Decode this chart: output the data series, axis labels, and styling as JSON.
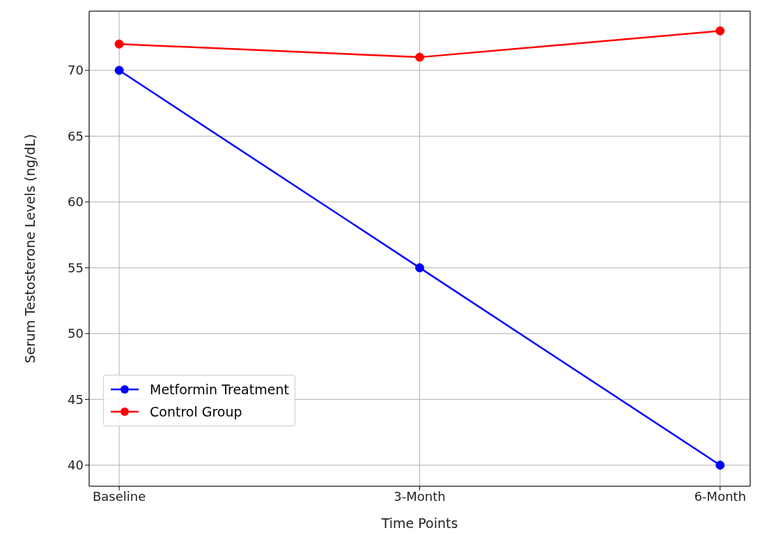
{
  "chart_data": {
    "type": "line",
    "xlabel": "Time Points",
    "ylabel": "Serum Testosterone Levels (ng/dL)",
    "categories": [
      "Baseline",
      "3-Month",
      "6-Month"
    ],
    "series": [
      {
        "name": "Metformin Treatment",
        "color": "#0000ff",
        "values": [
          70,
          55,
          40
        ]
      },
      {
        "name": "Control Group",
        "color": "#ff0000",
        "values": [
          72,
          71,
          73
        ]
      }
    ],
    "ylim": [
      38.4,
      74.5
    ],
    "yticks": [
      40,
      45,
      50,
      55,
      60,
      65,
      70
    ],
    "grid": true,
    "legend": "bottom left",
    "marker": "circle",
    "line_style": "solid"
  }
}
